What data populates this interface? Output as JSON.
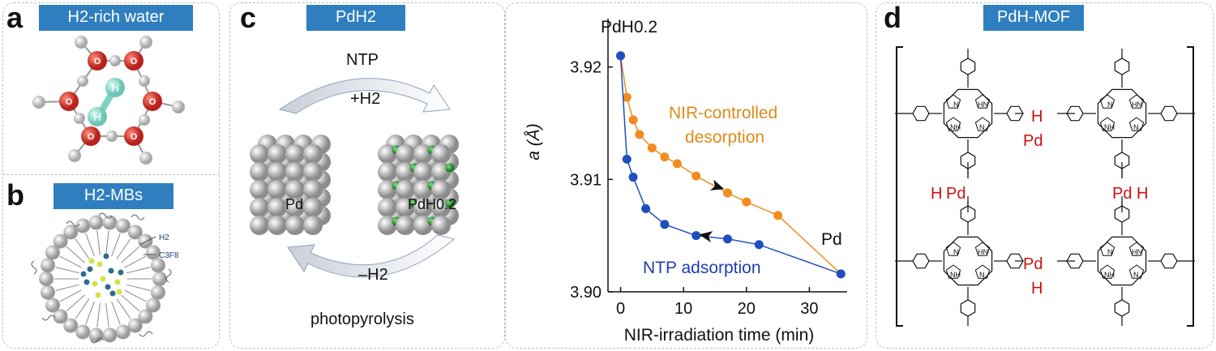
{
  "panel_a": {
    "letter": "a",
    "tab_label": "H2-rich water",
    "atom_H": "H",
    "atom_O": "O"
  },
  "panel_b": {
    "letter": "b",
    "tab_label": "H2-MBs",
    "label_H2": "H2",
    "label_C3F8": "C3F8"
  },
  "panel_c": {
    "letter": "c",
    "tab_label": "PdH2",
    "top_label": "NTP",
    "plus_label": "+H2",
    "minus_label": "–H2",
    "bottom_label": "photopyrolysis",
    "cube_left": "Pd",
    "cube_right": "PdH0.2",
    "corner_label": "PdH0.2",
    "end_label": "Pd",
    "orange_label_line1": "NIR-controlled",
    "orange_label_line2": "desorption",
    "blue_label": "NTP adsorption",
    "colors": {
      "orange": "#f28c1e",
      "blue": "#1f4fbf"
    }
  },
  "chart_data": {
    "type": "line",
    "xlabel": "NIR-irradiation time (min)",
    "ylabel": "a (Å)",
    "xlim": [
      -2,
      36
    ],
    "ylim": [
      3.9,
      3.9225
    ],
    "xticks": [
      0,
      10,
      20,
      30
    ],
    "yticks": [
      3.9,
      3.91,
      3.92
    ],
    "xtick_labels": [
      "0",
      "10",
      "20",
      "30"
    ],
    "ytick_labels": [
      "3.90",
      "3.91",
      "3.92"
    ],
    "series": [
      {
        "name": "NIR-controlled desorption",
        "color": "#f28c1e",
        "x": [
          0,
          1,
          2,
          3,
          5,
          7,
          9,
          12,
          17,
          20,
          25,
          35
        ],
        "y": [
          3.921,
          3.9173,
          3.9153,
          3.914,
          3.9128,
          3.912,
          3.9114,
          3.9103,
          3.9088,
          3.908,
          3.9068,
          3.9016
        ]
      },
      {
        "name": "NTP adsorption",
        "color": "#1f4fbf",
        "x": [
          0,
          1,
          2,
          4,
          7,
          12,
          17,
          22,
          35
        ],
        "y": [
          3.921,
          3.9118,
          3.9102,
          3.9074,
          3.906,
          3.905,
          3.9047,
          3.9042,
          3.9016
        ]
      }
    ]
  },
  "panel_d": {
    "letter": "d",
    "tab_label": "PdH-MOF",
    "pd": "Pd",
    "h": "H",
    "n": "N",
    "nh": "NH",
    "hn": "HN"
  }
}
